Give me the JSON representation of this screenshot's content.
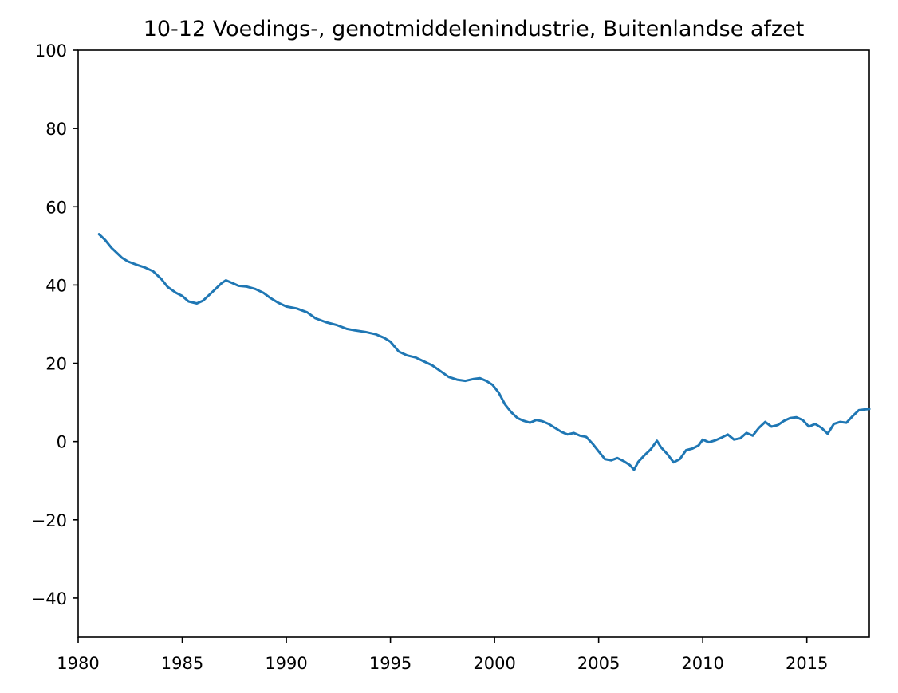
{
  "chart_data": {
    "type": "line",
    "title": "10-12 Voedings-, genotmiddelenindustrie, Buitenlandse afzet",
    "xlabel": "",
    "ylabel": "",
    "xlim": [
      1980,
      2018
    ],
    "ylim": [
      -50,
      100
    ],
    "xticks": [
      1980,
      1985,
      1990,
      1995,
      2000,
      2005,
      2010,
      2015
    ],
    "xtick_labels": [
      "1980",
      "1985",
      "1990",
      "1995",
      "2000",
      "2005",
      "2010",
      "2015"
    ],
    "yticks": [
      -40,
      -20,
      0,
      20,
      40,
      60,
      80,
      100
    ],
    "ytick_labels": [
      "−40",
      "−20",
      "0",
      "20",
      "40",
      "60",
      "80",
      "100"
    ],
    "grid": false,
    "legend": "none",
    "line_color": "#1f77b4",
    "series": [
      {
        "x": [
          1981.0,
          1981.3,
          1981.6,
          1981.9,
          1982.1,
          1982.4,
          1982.8,
          1983.2,
          1983.6,
          1984.0,
          1984.3,
          1984.7,
          1985.0,
          1985.3,
          1985.7,
          1986.0,
          1986.3,
          1986.6,
          1986.9,
          1987.1,
          1987.4,
          1987.7,
          1988.1,
          1988.5,
          1988.9,
          1989.2,
          1989.6,
          1990.0,
          1990.5,
          1991.0,
          1991.4,
          1991.9,
          1992.4,
          1992.9,
          1993.3,
          1993.8,
          1994.3,
          1994.7,
          1995.0,
          1995.4,
          1995.8,
          1996.2,
          1996.6,
          1997.0,
          1997.4,
          1997.8,
          1998.2,
          1998.6,
          1999.0,
          1999.3,
          1999.6,
          1999.9,
          2000.2,
          2000.5,
          2000.8,
          2001.1,
          2001.4,
          2001.7,
          2002.0,
          2002.3,
          2002.6,
          2002.9,
          2003.2,
          2003.5,
          2003.8,
          2004.1,
          2004.4,
          2004.7,
          2005.0,
          2005.3,
          2005.6,
          2005.9,
          2006.2,
          2006.5,
          2006.7,
          2006.9,
          2007.2,
          2007.5,
          2007.8,
          2008.0,
          2008.3,
          2008.6,
          2008.9,
          2009.2,
          2009.5,
          2009.8,
          2010.0,
          2010.3,
          2010.6,
          2010.9,
          2011.2,
          2011.5,
          2011.8,
          2012.1,
          2012.4,
          2012.7,
          2013.0,
          2013.3,
          2013.6,
          2013.9,
          2014.2,
          2014.5,
          2014.8,
          2015.1,
          2015.4,
          2015.7,
          2016.0,
          2016.3,
          2016.6,
          2016.9,
          2017.2,
          2017.5,
          2017.8,
          2018.0
        ],
        "y": [
          53,
          51.5,
          49.5,
          48,
          47,
          46,
          45.2,
          44.5,
          43.5,
          41.5,
          39.5,
          38,
          37.2,
          35.8,
          35.3,
          36,
          37.5,
          39,
          40.5,
          41.2,
          40.5,
          39.8,
          39.6,
          39,
          38,
          36.8,
          35.5,
          34.5,
          34,
          33,
          31.5,
          30.5,
          29.8,
          28.8,
          28.4,
          28,
          27.4,
          26.5,
          25.5,
          23,
          22,
          21.5,
          20.5,
          19.5,
          18,
          16.5,
          15.8,
          15.5,
          16,
          16.2,
          15.5,
          14.5,
          12.5,
          9.5,
          7.5,
          6,
          5.3,
          4.8,
          5.5,
          5.2,
          4.5,
          3.5,
          2.5,
          1.8,
          2.2,
          1.5,
          1.2,
          -0.5,
          -2.5,
          -4.5,
          -4.8,
          -4.2,
          -5,
          -6,
          -7.2,
          -5.2,
          -3.5,
          -2,
          0.2,
          -1.5,
          -3.2,
          -5.3,
          -4.5,
          -2.2,
          -1.8,
          -1,
          0.5,
          -0.2,
          0.3,
          1,
          1.8,
          0.5,
          0.8,
          2.2,
          1.5,
          3.5,
          5,
          3.8,
          4.2,
          5.3,
          6,
          6.2,
          5.5,
          3.8,
          4.5,
          3.5,
          2,
          4.5,
          5,
          4.8,
          6.5,
          8,
          8.2,
          8.3
        ]
      }
    ]
  }
}
